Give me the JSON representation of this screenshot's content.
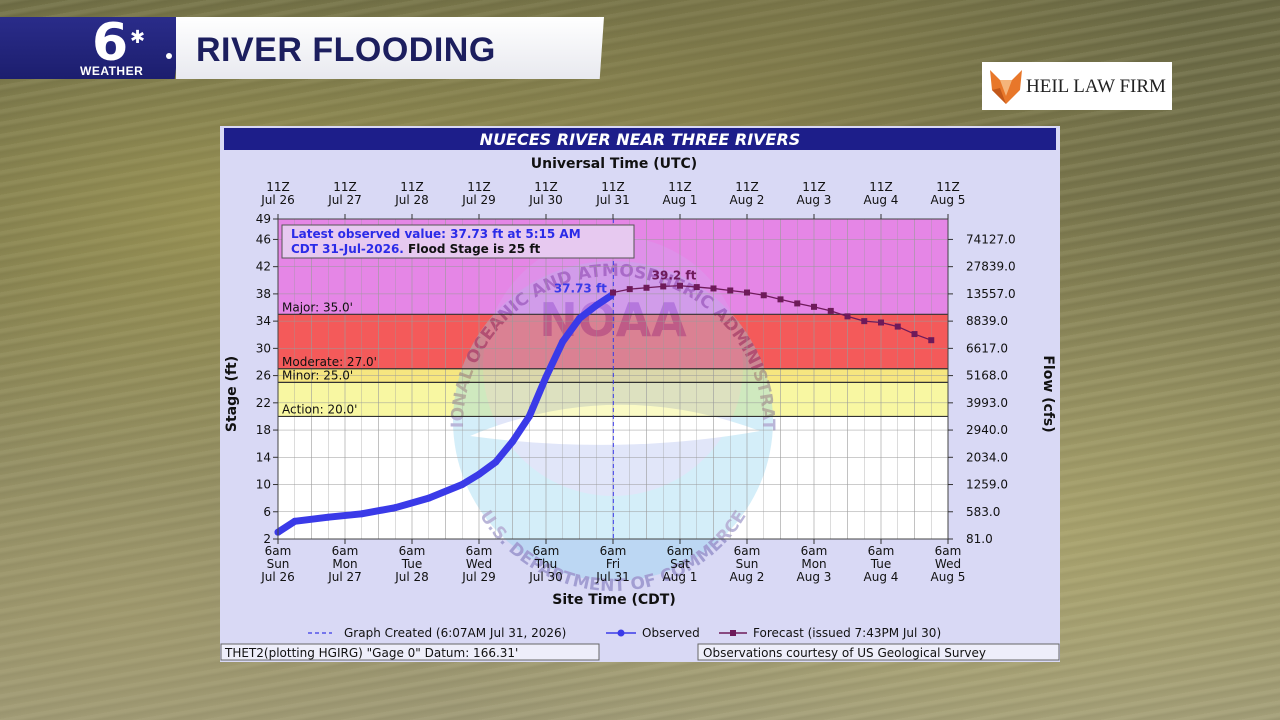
{
  "banner": {
    "logo_number": "6",
    "logo_text": "WEATHER",
    "title": "RIVER FLOODING"
  },
  "sponsor": {
    "name": "HEIL LAW FIRM",
    "icon": "fox-icon"
  },
  "colors": {
    "major": "#e586e6",
    "moderate": "#f45a5a",
    "minor": "#f6e680",
    "action": "#f8f7a2",
    "observed": "#3a3ae8",
    "forecast": "#6e1a5a",
    "plot_bg": "#ffffff",
    "panel_bg": "#d9d9f5",
    "title_bar": "#1d1e8a"
  },
  "chart_data": {
    "type": "line",
    "title": "NUECES RIVER NEAR THREE RIVERS",
    "top_axis_title": "Universal Time (UTC)",
    "xlabel": "Site Time (CDT)",
    "ylabel_left": "Stage (ft)",
    "ylabel_right": "Flow (cfs)",
    "x_range": [
      "2026-07-26T06:00",
      "2026-08-05T06:00"
    ],
    "ylim": [
      2,
      49
    ],
    "grid": true,
    "y_ticks": [
      2,
      6,
      10,
      14,
      18,
      22,
      26,
      30,
      34,
      38,
      42,
      46,
      49
    ],
    "right_ticks": [
      {
        "stage": 2,
        "label": "81.0"
      },
      {
        "stage": 6,
        "label": "583.0"
      },
      {
        "stage": 10,
        "label": "1259.0"
      },
      {
        "stage": 14,
        "label": "2034.0"
      },
      {
        "stage": 18,
        "label": "2940.0"
      },
      {
        "stage": 22,
        "label": "3993.0"
      },
      {
        "stage": 26,
        "label": "5168.0"
      },
      {
        "stage": 30,
        "label": "6617.0"
      },
      {
        "stage": 34,
        "label": "8839.0"
      },
      {
        "stage": 38,
        "label": "13557.0"
      },
      {
        "stage": 42,
        "label": "27839.0"
      },
      {
        "stage": 46,
        "label": "74127.0"
      }
    ],
    "bottom_ticks": [
      {
        "t": "2026-07-26T06:00",
        "l1": "6am",
        "l2": "Sun",
        "l3": "Jul 26"
      },
      {
        "t": "2026-07-27T06:00",
        "l1": "6am",
        "l2": "Mon",
        "l3": "Jul 27"
      },
      {
        "t": "2026-07-28T06:00",
        "l1": "6am",
        "l2": "Tue",
        "l3": "Jul 28"
      },
      {
        "t": "2026-07-29T06:00",
        "l1": "6am",
        "l2": "Wed",
        "l3": "Jul 29"
      },
      {
        "t": "2026-07-30T06:00",
        "l1": "6am",
        "l2": "Thu",
        "l3": "Jul 30"
      },
      {
        "t": "2026-07-31T06:00",
        "l1": "6am",
        "l2": "Fri",
        "l3": "Jul 31"
      },
      {
        "t": "2026-08-01T06:00",
        "l1": "6am",
        "l2": "Sat",
        "l3": "Aug 1"
      },
      {
        "t": "2026-08-02T06:00",
        "l1": "6am",
        "l2": "Sun",
        "l3": "Aug 2"
      },
      {
        "t": "2026-08-03T06:00",
        "l1": "6am",
        "l2": "Mon",
        "l3": "Aug 3"
      },
      {
        "t": "2026-08-04T06:00",
        "l1": "6am",
        "l2": "Tue",
        "l3": "Aug 4"
      },
      {
        "t": "2026-08-05T06:00",
        "l1": "6am",
        "l2": "Wed",
        "l3": "Aug 5"
      }
    ],
    "top_ticks": [
      {
        "t": "2026-07-26T06:00",
        "l1": "11Z",
        "l2": "Jul 26"
      },
      {
        "t": "2026-07-27T06:00",
        "l1": "11Z",
        "l2": "Jul 27"
      },
      {
        "t": "2026-07-28T06:00",
        "l1": "11Z",
        "l2": "Jul 28"
      },
      {
        "t": "2026-07-29T06:00",
        "l1": "11Z",
        "l2": "Jul 29"
      },
      {
        "t": "2026-07-30T06:00",
        "l1": "11Z",
        "l2": "Jul 30"
      },
      {
        "t": "2026-07-31T06:00",
        "l1": "11Z",
        "l2": "Jul 31"
      },
      {
        "t": "2026-08-01T06:00",
        "l1": "11Z",
        "l2": "Aug 1"
      },
      {
        "t": "2026-08-02T06:00",
        "l1": "11Z",
        "l2": "Aug 2"
      },
      {
        "t": "2026-08-03T06:00",
        "l1": "11Z",
        "l2": "Aug 3"
      },
      {
        "t": "2026-08-04T06:00",
        "l1": "11Z",
        "l2": "Aug 4"
      },
      {
        "t": "2026-08-05T06:00",
        "l1": "11Z",
        "l2": "Aug 5"
      }
    ],
    "flood_categories": [
      {
        "name": "major",
        "label": "Major: 35.0'",
        "from": 35,
        "to": 49
      },
      {
        "name": "moderate",
        "label": "Moderate: 27.0'",
        "from": 27,
        "to": 35
      },
      {
        "name": "minor",
        "label": "Minor: 25.0'",
        "from": 25,
        "to": 27
      },
      {
        "name": "action",
        "label": "Action: 20.0'",
        "from": 20,
        "to": 25
      }
    ],
    "latest_observed": {
      "line1": "Latest observed value: 37.73 ft at 5:15 AM",
      "line2a": "CDT 31-Jul-2026.",
      "line2b": " Flood Stage is 25 ft"
    },
    "graph_created": "2026-07-31T06:07",
    "annotations": {
      "observed_peak": "37.73 ft",
      "forecast_peak": "39.2 ft"
    },
    "series": [
      {
        "name": "Observed",
        "points": [
          [
            "2026-07-26T06:00",
            3.0
          ],
          [
            "2026-07-26T12:00",
            4.6
          ],
          [
            "2026-07-27T00:00",
            5.2
          ],
          [
            "2026-07-27T12:00",
            5.7
          ],
          [
            "2026-07-28T00:00",
            6.6
          ],
          [
            "2026-07-28T12:00",
            8.0
          ],
          [
            "2026-07-29T00:00",
            10.0
          ],
          [
            "2026-07-29T06:00",
            11.5
          ],
          [
            "2026-07-29T12:00",
            13.3
          ],
          [
            "2026-07-29T18:00",
            16.3
          ],
          [
            "2026-07-30T00:00",
            20.0
          ],
          [
            "2026-07-30T06:00",
            25.8
          ],
          [
            "2026-07-30T12:00",
            31.0
          ],
          [
            "2026-07-30T18:00",
            34.4
          ],
          [
            "2026-07-31T00:00",
            36.3
          ],
          [
            "2026-07-31T05:15",
            37.73
          ]
        ]
      },
      {
        "name": "Forecast",
        "points": [
          [
            "2026-07-31T06:00",
            38.2
          ],
          [
            "2026-07-31T12:00",
            38.7
          ],
          [
            "2026-07-31T18:00",
            38.9
          ],
          [
            "2026-08-01T00:00",
            39.1
          ],
          [
            "2026-08-01T06:00",
            39.2
          ],
          [
            "2026-08-01T12:00",
            39.0
          ],
          [
            "2026-08-01T18:00",
            38.8
          ],
          [
            "2026-08-02T00:00",
            38.5
          ],
          [
            "2026-08-02T06:00",
            38.2
          ],
          [
            "2026-08-02T12:00",
            37.8
          ],
          [
            "2026-08-02T18:00",
            37.2
          ],
          [
            "2026-08-03T00:00",
            36.6
          ],
          [
            "2026-08-03T06:00",
            36.1
          ],
          [
            "2026-08-03T12:00",
            35.5
          ],
          [
            "2026-08-03T18:00",
            34.7
          ],
          [
            "2026-08-04T00:00",
            34.0
          ],
          [
            "2026-08-04T06:00",
            33.8
          ],
          [
            "2026-08-04T12:00",
            33.2
          ],
          [
            "2026-08-04T18:00",
            32.1
          ],
          [
            "2026-08-05T00:00",
            31.2
          ]
        ]
      }
    ],
    "legend": {
      "placement": "bottom",
      "items": [
        {
          "label": "Graph Created (6:07AM Jul 31, 2026)",
          "style": "dashed"
        },
        {
          "label": "Observed",
          "style": "observed"
        },
        {
          "label": "Forecast (issued 7:43PM Jul 30)",
          "style": "forecast"
        }
      ]
    },
    "footer_left": "THET2(plotting HGIRG) \"Gage 0\" Datum: 166.31'",
    "footer_right": "Observations courtesy of US Geological Survey",
    "watermark": {
      "top": "NATIONAL OCEANIC AND ATMOSPHERIC ADMINISTRATION",
      "center": "NOAA",
      "bottom": "U.S. DEPARTMENT OF COMMERCE"
    }
  }
}
